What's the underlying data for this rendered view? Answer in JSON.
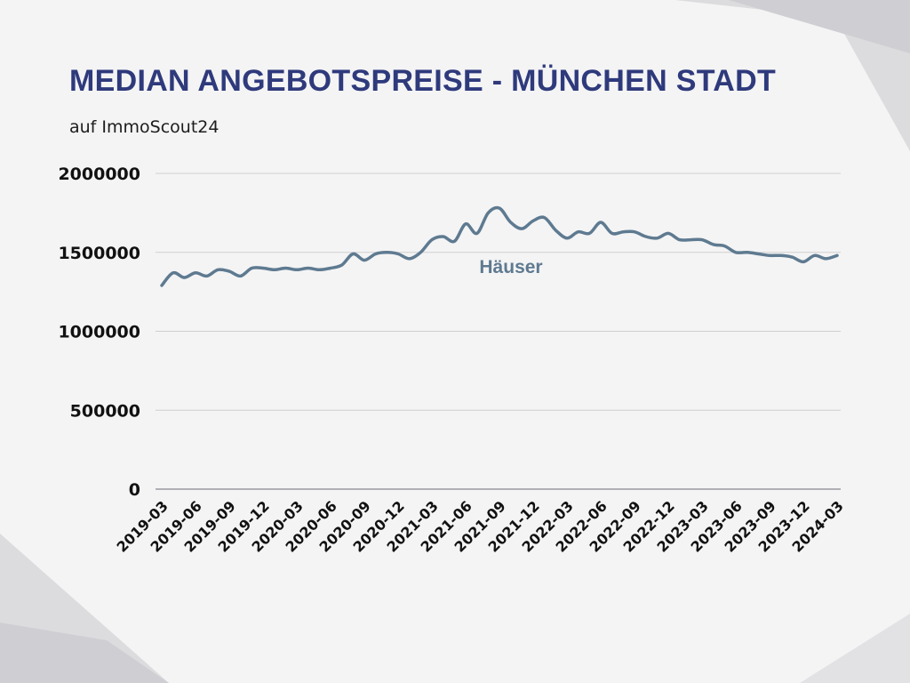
{
  "colors": {
    "background": "#f4f4f5",
    "title": "#2f3a7c",
    "line": "#5e7a90",
    "grid": "#cfcfd2",
    "decor": "#dadadd"
  },
  "chart_data": {
    "type": "line",
    "title": "MEDIAN ANGEBOTSPREISE - MÜNCHEN STADT",
    "subtitle": "auf ImmoScout24",
    "xlabel": "",
    "ylabel": "",
    "ylim": [
      0,
      2000000
    ],
    "yticks": [
      "2000000",
      "1500000",
      "1000000",
      "500000",
      "0"
    ],
    "yvalues": [
      2000000,
      1500000,
      1000000,
      500000,
      0
    ],
    "grid": true,
    "x_tick_labels": [
      "2019-03",
      "2019-06",
      "2019-09",
      "2019-12",
      "2020-03",
      "2020-06",
      "2020-09",
      "2020-12",
      "2021-03",
      "2021-06",
      "2021-09",
      "2021-12",
      "2022-03",
      "2022-06",
      "2022-09",
      "2022-12",
      "2023-03",
      "2023-06",
      "2023-09",
      "2023-12",
      "2024-03"
    ],
    "series": [
      {
        "name": "Häuser",
        "x": [
          "2019-03",
          "2019-04",
          "2019-05",
          "2019-06",
          "2019-07",
          "2019-08",
          "2019-09",
          "2019-10",
          "2019-11",
          "2019-12",
          "2020-01",
          "2020-02",
          "2020-03",
          "2020-04",
          "2020-05",
          "2020-06",
          "2020-07",
          "2020-08",
          "2020-09",
          "2020-10",
          "2020-11",
          "2020-12",
          "2021-01",
          "2021-02",
          "2021-03",
          "2021-04",
          "2021-05",
          "2021-06",
          "2021-07",
          "2021-08",
          "2021-09",
          "2021-10",
          "2021-11",
          "2021-12",
          "2022-01",
          "2022-02",
          "2022-03",
          "2022-04",
          "2022-05",
          "2022-06",
          "2022-07",
          "2022-08",
          "2022-09",
          "2022-10",
          "2022-11",
          "2022-12",
          "2023-01",
          "2023-02",
          "2023-03",
          "2023-04",
          "2023-05",
          "2023-06",
          "2023-07",
          "2023-08",
          "2023-09",
          "2023-10",
          "2023-11",
          "2023-12",
          "2024-01",
          "2024-02",
          "2024-03"
        ],
        "values": [
          1290000,
          1370000,
          1340000,
          1370000,
          1350000,
          1390000,
          1380000,
          1350000,
          1400000,
          1400000,
          1390000,
          1400000,
          1390000,
          1400000,
          1390000,
          1400000,
          1420000,
          1490000,
          1450000,
          1490000,
          1500000,
          1490000,
          1460000,
          1500000,
          1580000,
          1600000,
          1570000,
          1680000,
          1620000,
          1750000,
          1780000,
          1690000,
          1650000,
          1700000,
          1720000,
          1640000,
          1590000,
          1630000,
          1620000,
          1690000,
          1620000,
          1630000,
          1630000,
          1600000,
          1590000,
          1620000,
          1580000,
          1580000,
          1580000,
          1550000,
          1540000,
          1500000,
          1500000,
          1490000,
          1480000,
          1480000,
          1470000,
          1440000,
          1480000,
          1460000,
          1480000
        ]
      }
    ]
  }
}
